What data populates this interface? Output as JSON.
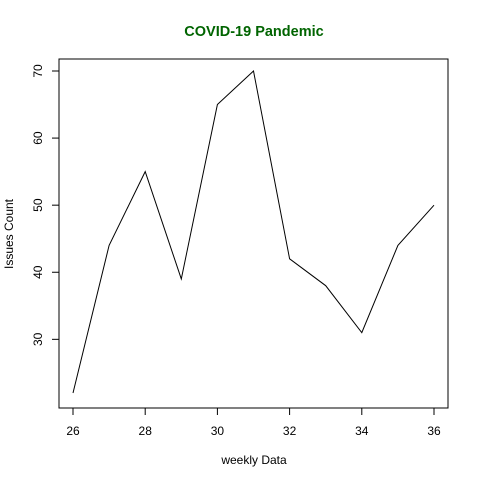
{
  "chart_data": {
    "type": "line",
    "title": "COVID-19 Pandemic",
    "title_color": "#006400",
    "xlabel": "weekly Data",
    "ylabel": "Issues Count",
    "x": [
      26,
      27,
      28,
      29,
      30,
      31,
      32,
      33,
      34,
      35,
      36
    ],
    "series": [
      {
        "values": [
          22,
          44,
          55,
          39,
          65,
          70,
          42,
          38,
          31,
          44,
          50
        ],
        "color": "#000000"
      }
    ],
    "xlim": [
      26,
      36
    ],
    "ylim": [
      22,
      70
    ],
    "x_ticks": [
      26,
      28,
      30,
      32,
      34,
      36
    ],
    "y_ticks": [
      30,
      40,
      50,
      60,
      70
    ],
    "x_tick_labels": [
      "26",
      "28",
      "30",
      "32",
      "34",
      "36"
    ],
    "y_tick_labels": [
      "30",
      "40",
      "50",
      "60",
      "70"
    ],
    "grid": false,
    "legend": "none"
  }
}
